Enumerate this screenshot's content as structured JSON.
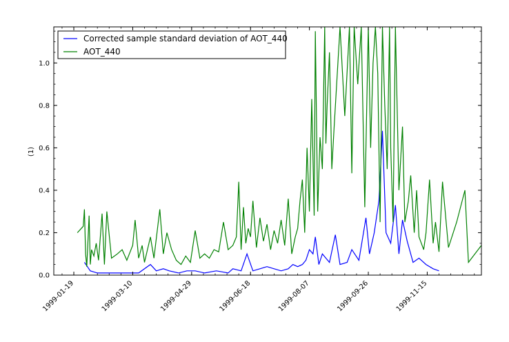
{
  "chart_data": {
    "type": "line",
    "title": "",
    "xlabel": "",
    "ylabel": "(1)",
    "x_ticks": [
      "1999-01-19",
      "1999-03-10",
      "1999-04-29",
      "1999-06-18",
      "1999-08-07",
      "1999-09-26",
      "1999-11-15"
    ],
    "xlim": [
      "1999-01-02",
      "1999-12-31"
    ],
    "y_ticks": [
      "0.0",
      "0.2",
      "0.4",
      "0.6",
      "0.8",
      "1.0"
    ],
    "ylim": [
      0,
      1.17
    ],
    "grid": false,
    "legend_position": "upper-left",
    "series": [
      {
        "name": "Corrected sample standard deviation of AOT_440",
        "color": "#0000ff",
        "x": [
          "1999-01-28",
          "1999-02-02",
          "1999-02-08",
          "1999-02-20",
          "1999-03-15",
          "1999-03-25",
          "1999-03-30",
          "1999-04-05",
          "1999-04-10",
          "1999-04-18",
          "1999-04-25",
          "1999-05-02",
          "1999-05-10",
          "1999-05-20",
          "1999-05-30",
          "1999-06-03",
          "1999-06-10",
          "1999-06-15",
          "1999-06-20",
          "1999-06-26",
          "1999-07-02",
          "1999-07-08",
          "1999-07-14",
          "1999-07-20",
          "1999-07-24",
          "1999-07-28",
          "1999-08-01",
          "1999-08-04",
          "1999-08-07",
          "1999-08-10",
          "1999-08-12",
          "1999-08-15",
          "1999-08-18",
          "1999-08-21",
          "1999-08-24",
          "1999-08-29",
          "1999-09-02",
          "1999-09-08",
          "1999-09-12",
          "1999-09-18",
          "1999-09-24",
          "1999-09-27",
          "1999-10-01",
          "1999-10-05",
          "1999-10-08",
          "1999-10-11",
          "1999-10-15",
          "1999-10-19",
          "1999-10-22",
          "1999-10-25",
          "1999-10-29",
          "1999-11-03",
          "1999-11-08",
          "1999-11-14",
          "1999-11-20",
          "1999-11-25"
        ],
        "y": [
          0.06,
          0.02,
          0.01,
          0.01,
          0.01,
          0.05,
          0.02,
          0.03,
          0.02,
          0.01,
          0.02,
          0.02,
          0.01,
          0.02,
          0.01,
          0.03,
          0.02,
          0.1,
          0.02,
          0.03,
          0.04,
          0.03,
          0.02,
          0.03,
          0.05,
          0.04,
          0.05,
          0.07,
          0.12,
          0.1,
          0.18,
          0.05,
          0.1,
          0.08,
          0.06,
          0.19,
          0.05,
          0.06,
          0.12,
          0.07,
          0.27,
          0.1,
          0.2,
          0.35,
          0.68,
          0.2,
          0.15,
          0.33,
          0.1,
          0.26,
          0.16,
          0.06,
          0.08,
          0.05,
          0.03,
          0.02
        ]
      },
      {
        "name": "AOT_440",
        "color": "#008000",
        "x": [
          "1999-01-22",
          "1999-01-27",
          "1999-01-28",
          "1999-01-29",
          "1999-01-30",
          "1999-02-01",
          "1999-02-02",
          "1999-02-03",
          "1999-02-05",
          "1999-02-07",
          "1999-02-09",
          "1999-02-12",
          "1999-02-14",
          "1999-02-16",
          "1999-02-20",
          "1999-02-25",
          "1999-03-01",
          "1999-03-05",
          "1999-03-10",
          "1999-03-12",
          "1999-03-15",
          "1999-03-18",
          "1999-03-20",
          "1999-03-25",
          "1999-03-28",
          "1999-04-02",
          "1999-04-05",
          "1999-04-08",
          "1999-04-12",
          "1999-04-16",
          "1999-04-20",
          "1999-04-24",
          "1999-04-28",
          "1999-05-02",
          "1999-05-06",
          "1999-05-10",
          "1999-05-14",
          "1999-05-18",
          "1999-05-22",
          "1999-05-26",
          "1999-05-30",
          "1999-06-03",
          "1999-06-06",
          "1999-06-08",
          "1999-06-10",
          "1999-06-12",
          "1999-06-14",
          "1999-06-16",
          "1999-06-18",
          "1999-06-20",
          "1999-06-23",
          "1999-06-26",
          "1999-06-29",
          "1999-07-02",
          "1999-07-05",
          "1999-07-08",
          "1999-07-11",
          "1999-07-14",
          "1999-07-17",
          "1999-07-20",
          "1999-07-23",
          "1999-07-26",
          "1999-07-28",
          "1999-07-30",
          "1999-08-01",
          "1999-08-03",
          "1999-08-05",
          "1999-08-07",
          "1999-08-09",
          "1999-08-11",
          "1999-08-12",
          "1999-08-14",
          "1999-08-16",
          "1999-08-18",
          "1999-08-20",
          "1999-08-21",
          "1999-08-22",
          "1999-08-24",
          "1999-08-26",
          "1999-08-28",
          "1999-09-02",
          "1999-09-06",
          "1999-09-10",
          "1999-09-12",
          "1999-09-14",
          "1999-09-17",
          "1999-09-20",
          "1999-09-23",
          "1999-09-26",
          "1999-09-28",
          "1999-09-30",
          "1999-10-02",
          "1999-10-04",
          "1999-10-06",
          "1999-10-08",
          "1999-10-10",
          "1999-10-12",
          "1999-10-14",
          "1999-10-15",
          "1999-10-17",
          "1999-10-19",
          "1999-10-22",
          "1999-10-25",
          "1999-10-27",
          "1999-10-30",
          "1999-11-01",
          "1999-11-04",
          "1999-11-06",
          "1999-11-08",
          "1999-11-12",
          "1999-11-14",
          "1999-11-17",
          "1999-11-20",
          "1999-11-22",
          "1999-11-25",
          "1999-11-28",
          "1999-12-03",
          "1999-12-10",
          "1999-12-17",
          "1999-12-20",
          "1999-12-31"
        ],
        "y": [
          0.2,
          0.23,
          0.31,
          0.1,
          0.04,
          0.28,
          0.05,
          0.12,
          0.09,
          0.15,
          0.07,
          0.29,
          0.05,
          0.3,
          0.08,
          0.1,
          0.12,
          0.07,
          0.14,
          0.26,
          0.08,
          0.14,
          0.06,
          0.18,
          0.08,
          0.31,
          0.1,
          0.2,
          0.12,
          0.07,
          0.05,
          0.09,
          0.06,
          0.21,
          0.08,
          0.1,
          0.08,
          0.12,
          0.11,
          0.25,
          0.12,
          0.14,
          0.18,
          0.44,
          0.12,
          0.32,
          0.15,
          0.22,
          0.18,
          0.35,
          0.13,
          0.27,
          0.16,
          0.24,
          0.12,
          0.21,
          0.15,
          0.26,
          0.14,
          0.36,
          0.1,
          0.18,
          0.22,
          0.35,
          0.45,
          0.2,
          0.6,
          0.3,
          0.83,
          0.28,
          1.15,
          0.3,
          0.65,
          0.5,
          1.17,
          0.62,
          0.8,
          1.05,
          0.5,
          0.7,
          1.17,
          0.75,
          1.17,
          0.48,
          1.17,
          0.9,
          1.17,
          0.32,
          1.17,
          0.6,
          1.0,
          1.17,
          0.95,
          0.25,
          1.17,
          0.8,
          0.5,
          1.17,
          0.6,
          0.25,
          1.17,
          0.4,
          0.7,
          0.25,
          0.35,
          0.47,
          0.2,
          0.4,
          0.18,
          0.12,
          0.2,
          0.45,
          0.15,
          0.25,
          0.11,
          0.44,
          0.13,
          0.25,
          0.4,
          0.06,
          0.14
        ]
      }
    ]
  }
}
